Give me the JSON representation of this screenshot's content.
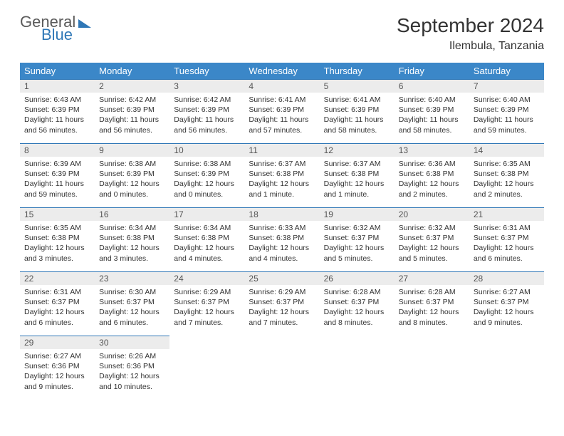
{
  "brand": {
    "line1": "General",
    "line2": "Blue"
  },
  "title": "September 2024",
  "location": "Ilembula, Tanzania",
  "colors": {
    "header_bg": "#3b87c8",
    "header_text": "#ffffff",
    "daynum_bg": "#ececec",
    "daynum_border": "#2f77b6",
    "text": "#333333"
  },
  "weekdays": [
    "Sunday",
    "Monday",
    "Tuesday",
    "Wednesday",
    "Thursday",
    "Friday",
    "Saturday"
  ],
  "weeks": [
    [
      {
        "n": "1",
        "sr": "Sunrise: 6:43 AM",
        "ss": "Sunset: 6:39 PM",
        "dl": "Daylight: 11 hours and 56 minutes."
      },
      {
        "n": "2",
        "sr": "Sunrise: 6:42 AM",
        "ss": "Sunset: 6:39 PM",
        "dl": "Daylight: 11 hours and 56 minutes."
      },
      {
        "n": "3",
        "sr": "Sunrise: 6:42 AM",
        "ss": "Sunset: 6:39 PM",
        "dl": "Daylight: 11 hours and 56 minutes."
      },
      {
        "n": "4",
        "sr": "Sunrise: 6:41 AM",
        "ss": "Sunset: 6:39 PM",
        "dl": "Daylight: 11 hours and 57 minutes."
      },
      {
        "n": "5",
        "sr": "Sunrise: 6:41 AM",
        "ss": "Sunset: 6:39 PM",
        "dl": "Daylight: 11 hours and 58 minutes."
      },
      {
        "n": "6",
        "sr": "Sunrise: 6:40 AM",
        "ss": "Sunset: 6:39 PM",
        "dl": "Daylight: 11 hours and 58 minutes."
      },
      {
        "n": "7",
        "sr": "Sunrise: 6:40 AM",
        "ss": "Sunset: 6:39 PM",
        "dl": "Daylight: 11 hours and 59 minutes."
      }
    ],
    [
      {
        "n": "8",
        "sr": "Sunrise: 6:39 AM",
        "ss": "Sunset: 6:39 PM",
        "dl": "Daylight: 11 hours and 59 minutes."
      },
      {
        "n": "9",
        "sr": "Sunrise: 6:38 AM",
        "ss": "Sunset: 6:39 PM",
        "dl": "Daylight: 12 hours and 0 minutes."
      },
      {
        "n": "10",
        "sr": "Sunrise: 6:38 AM",
        "ss": "Sunset: 6:39 PM",
        "dl": "Daylight: 12 hours and 0 minutes."
      },
      {
        "n": "11",
        "sr": "Sunrise: 6:37 AM",
        "ss": "Sunset: 6:38 PM",
        "dl": "Daylight: 12 hours and 1 minute."
      },
      {
        "n": "12",
        "sr": "Sunrise: 6:37 AM",
        "ss": "Sunset: 6:38 PM",
        "dl": "Daylight: 12 hours and 1 minute."
      },
      {
        "n": "13",
        "sr": "Sunrise: 6:36 AM",
        "ss": "Sunset: 6:38 PM",
        "dl": "Daylight: 12 hours and 2 minutes."
      },
      {
        "n": "14",
        "sr": "Sunrise: 6:35 AM",
        "ss": "Sunset: 6:38 PM",
        "dl": "Daylight: 12 hours and 2 minutes."
      }
    ],
    [
      {
        "n": "15",
        "sr": "Sunrise: 6:35 AM",
        "ss": "Sunset: 6:38 PM",
        "dl": "Daylight: 12 hours and 3 minutes."
      },
      {
        "n": "16",
        "sr": "Sunrise: 6:34 AM",
        "ss": "Sunset: 6:38 PM",
        "dl": "Daylight: 12 hours and 3 minutes."
      },
      {
        "n": "17",
        "sr": "Sunrise: 6:34 AM",
        "ss": "Sunset: 6:38 PM",
        "dl": "Daylight: 12 hours and 4 minutes."
      },
      {
        "n": "18",
        "sr": "Sunrise: 6:33 AM",
        "ss": "Sunset: 6:38 PM",
        "dl": "Daylight: 12 hours and 4 minutes."
      },
      {
        "n": "19",
        "sr": "Sunrise: 6:32 AM",
        "ss": "Sunset: 6:37 PM",
        "dl": "Daylight: 12 hours and 5 minutes."
      },
      {
        "n": "20",
        "sr": "Sunrise: 6:32 AM",
        "ss": "Sunset: 6:37 PM",
        "dl": "Daylight: 12 hours and 5 minutes."
      },
      {
        "n": "21",
        "sr": "Sunrise: 6:31 AM",
        "ss": "Sunset: 6:37 PM",
        "dl": "Daylight: 12 hours and 6 minutes."
      }
    ],
    [
      {
        "n": "22",
        "sr": "Sunrise: 6:31 AM",
        "ss": "Sunset: 6:37 PM",
        "dl": "Daylight: 12 hours and 6 minutes."
      },
      {
        "n": "23",
        "sr": "Sunrise: 6:30 AM",
        "ss": "Sunset: 6:37 PM",
        "dl": "Daylight: 12 hours and 6 minutes."
      },
      {
        "n": "24",
        "sr": "Sunrise: 6:29 AM",
        "ss": "Sunset: 6:37 PM",
        "dl": "Daylight: 12 hours and 7 minutes."
      },
      {
        "n": "25",
        "sr": "Sunrise: 6:29 AM",
        "ss": "Sunset: 6:37 PM",
        "dl": "Daylight: 12 hours and 7 minutes."
      },
      {
        "n": "26",
        "sr": "Sunrise: 6:28 AM",
        "ss": "Sunset: 6:37 PM",
        "dl": "Daylight: 12 hours and 8 minutes."
      },
      {
        "n": "27",
        "sr": "Sunrise: 6:28 AM",
        "ss": "Sunset: 6:37 PM",
        "dl": "Daylight: 12 hours and 8 minutes."
      },
      {
        "n": "28",
        "sr": "Sunrise: 6:27 AM",
        "ss": "Sunset: 6:37 PM",
        "dl": "Daylight: 12 hours and 9 minutes."
      }
    ],
    [
      {
        "n": "29",
        "sr": "Sunrise: 6:27 AM",
        "ss": "Sunset: 6:36 PM",
        "dl": "Daylight: 12 hours and 9 minutes."
      },
      {
        "n": "30",
        "sr": "Sunrise: 6:26 AM",
        "ss": "Sunset: 6:36 PM",
        "dl": "Daylight: 12 hours and 10 minutes."
      },
      null,
      null,
      null,
      null,
      null
    ]
  ]
}
